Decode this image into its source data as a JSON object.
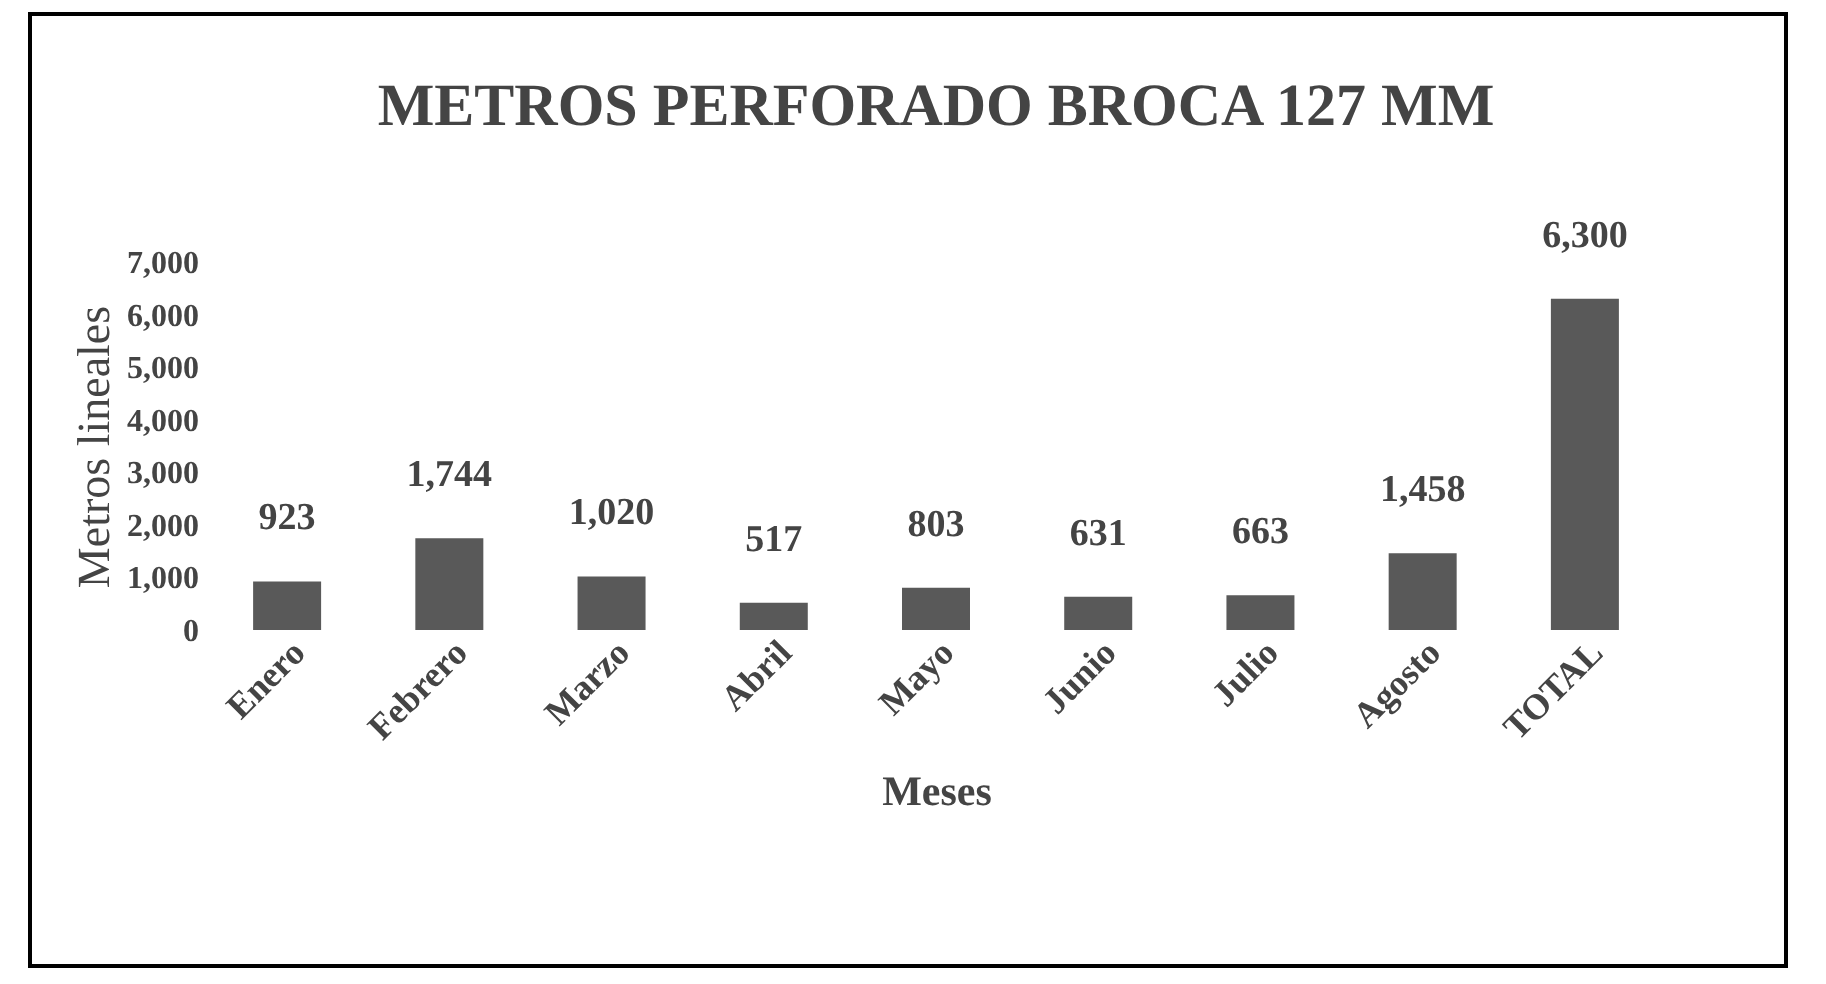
{
  "chart_data": {
    "type": "bar",
    "title": "METROS PERFORADO BROCA 127 MM",
    "xlabel": "Meses",
    "ylabel": "Metros lineales",
    "categories": [
      "Enero",
      "Febrero",
      "Marzo",
      "Abril",
      "Mayo",
      "Junio",
      "Julio",
      "Agosto",
      "TOTAL"
    ],
    "values": [
      923,
      1744,
      1020,
      517,
      803,
      631,
      663,
      1458,
      6300
    ],
    "value_labels": [
      "923",
      "1,744",
      "1,020",
      "517",
      "803",
      "631",
      "663",
      "1,458",
      "6,300"
    ],
    "color": "#595959",
    "ylim": [
      0,
      7000
    ],
    "yticks": [
      {
        "value": 0,
        "label": "0"
      },
      {
        "value": 1000,
        "label": "1,000"
      },
      {
        "value": 2000,
        "label": "2,000"
      },
      {
        "value": 3000,
        "label": "3,000"
      },
      {
        "value": 4000,
        "label": "4,000"
      },
      {
        "value": 5000,
        "label": "5,000"
      },
      {
        "value": 6000,
        "label": "6,000"
      },
      {
        "value": 7000,
        "label": "7,000"
      }
    ],
    "grid": false
  }
}
